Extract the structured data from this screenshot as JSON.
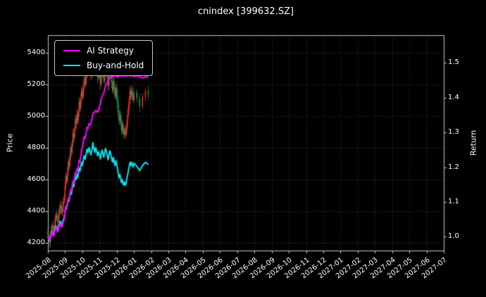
{
  "title": "cnindex [399632.SZ]",
  "colors": {
    "background": "#000000",
    "text": "#ffffff",
    "grid": "#3a3a3a",
    "frame": "#c8c8c8",
    "up_candle": "#fe3032",
    "down_candle": "#00a550",
    "ai_strategy": "#ff00ff",
    "buy_and_hold": "#00e5ee"
  },
  "legend": {
    "items": [
      {
        "label": "AI Strategy",
        "color": "#ff00ff"
      },
      {
        "label": "Buy-and-Hold",
        "color": "#00e5ee"
      }
    ]
  },
  "axes": {
    "left_label": "Price",
    "right_label": "Return",
    "left_ticks": [
      "4200",
      "4400",
      "4600",
      "4800",
      "5000",
      "5200",
      "5400"
    ],
    "right_ticks": [
      "1.0",
      "1.1",
      "1.2",
      "1.3",
      "1.4",
      "1.5"
    ],
    "x_ticks": [
      "2025-08",
      "2025-09",
      "2025-10",
      "2025-11",
      "2025-12",
      "2026-01",
      "2026-02",
      "2026-03",
      "2026-04",
      "2026-05",
      "2026-06",
      "2026-07",
      "2026-08",
      "2026-09",
      "2026-10",
      "2026-11",
      "2026-12",
      "2027-01",
      "2027-02",
      "2027-03",
      "2027-04",
      "2027-05",
      "2027-06",
      "2027-07"
    ]
  },
  "chart_data": {
    "type": "candlestick+line",
    "title": "cnindex [399632.SZ]",
    "grid": true,
    "legend_position": "upper left",
    "ylabel_left": "Price",
    "ylabel_right": "Return",
    "x_months": [
      "2025-08",
      "2025-09",
      "2025-10",
      "2025-11",
      "2025-12",
      "2026-01",
      "2026-02",
      "2026-03",
      "2026-04",
      "2026-05",
      "2026-06",
      "2026-07",
      "2026-08",
      "2026-09",
      "2026-10",
      "2026-11",
      "2026-12",
      "2027-01",
      "2027-02",
      "2027-03",
      "2027-04",
      "2027-05",
      "2027-06",
      "2027-07"
    ],
    "price_axis": {
      "label": "Price",
      "range": [
        4150,
        5510
      ],
      "ticks": [
        4200,
        4400,
        4600,
        4800,
        5000,
        5200,
        5400
      ]
    },
    "return_axis": {
      "label": "Return",
      "range": [
        0.96,
        1.58
      ],
      "ticks": [
        1.0,
        1.1,
        1.2,
        1.3,
        1.4,
        1.5
      ]
    },
    "candles": {
      "months": [
        "2025-08",
        "2025-09",
        "2025-10",
        "2025-11",
        "2025-12",
        "2026-01"
      ],
      "days_per_month": [
        21,
        22,
        18,
        20,
        22,
        6
      ],
      "open_first": 4270,
      "closes": [
        4250,
        4220,
        4200,
        4240,
        4280,
        4310,
        4290,
        4270,
        4310,
        4350,
        4380,
        4350,
        4330,
        4370,
        4410,
        4440,
        4410,
        4390,
        4430,
        4460,
        4490,
        4560,
        4620,
        4590,
        4650,
        4710,
        4680,
        4740,
        4800,
        4770,
        4830,
        4890,
        4860,
        4920,
        4980,
        4950,
        5010,
        4970,
        5030,
        5090,
        5050,
        5110,
        5160,
        5120,
        5180,
        5240,
        5200,
        5260,
        5320,
        5280,
        5340,
        5300,
        5250,
        5310,
        5400,
        5330,
        5280,
        5340,
        5300,
        5240,
        5290,
        5250,
        5200,
        5260,
        5310,
        5270,
        5220,
        5280,
        5330,
        5290,
        5240,
        5190,
        5250,
        5300,
        5260,
        5210,
        5160,
        5220,
        5170,
        5120,
        5180,
        5130,
        5080,
        5020,
        4970,
        5010,
        4960,
        4910,
        4950,
        4900,
        4880,
        4920,
        4880,
        4910,
        4960,
        5010,
        5060,
        5110,
        5160,
        5120,
        5160,
        5130,
        5100,
        5150,
        5110,
        5060,
        5120,
        5160,
        5130
      ]
    },
    "series": [
      {
        "name": "Buy-and-Hold",
        "color": "#00e5ee",
        "axis": "return",
        "returns": "derived:close_over_first"
      },
      {
        "name": "AI Strategy",
        "color": "#ff00ff",
        "axis": "return",
        "returns": [
          1.0,
          0.995,
          0.99,
          0.996,
          1.005,
          1.012,
          1.006,
          1.001,
          1.01,
          1.019,
          1.026,
          1.02,
          1.013,
          1.022,
          1.031,
          1.038,
          1.031,
          1.027,
          1.036,
          1.043,
          1.05,
          1.073,
          1.085,
          1.08,
          1.095,
          1.11,
          1.105,
          1.12,
          1.135,
          1.13,
          1.145,
          1.16,
          1.155,
          1.17,
          1.185,
          1.18,
          1.195,
          1.19,
          1.205,
          1.22,
          1.215,
          1.23,
          1.248,
          1.256,
          1.272,
          1.288,
          1.283,
          1.299,
          1.315,
          1.31,
          1.326,
          1.321,
          1.326,
          1.337,
          1.353,
          1.358,
          1.358,
          1.363,
          1.363,
          1.358,
          1.363,
          1.374,
          1.384,
          1.394,
          1.404,
          1.409,
          1.414,
          1.424,
          1.434,
          1.439,
          1.444,
          1.449,
          1.454,
          1.456,
          1.459,
          1.461,
          1.459,
          1.462,
          1.464,
          1.462,
          1.464,
          1.462,
          1.459,
          1.462,
          1.464,
          1.462,
          1.464,
          1.466,
          1.464,
          1.461,
          1.464,
          1.466,
          1.464,
          1.461,
          1.463,
          1.465,
          1.467,
          1.465,
          1.462,
          1.465,
          1.463,
          1.465,
          1.464,
          1.461,
          1.463,
          1.46,
          1.457,
          1.46,
          1.459
        ]
      }
    ]
  }
}
